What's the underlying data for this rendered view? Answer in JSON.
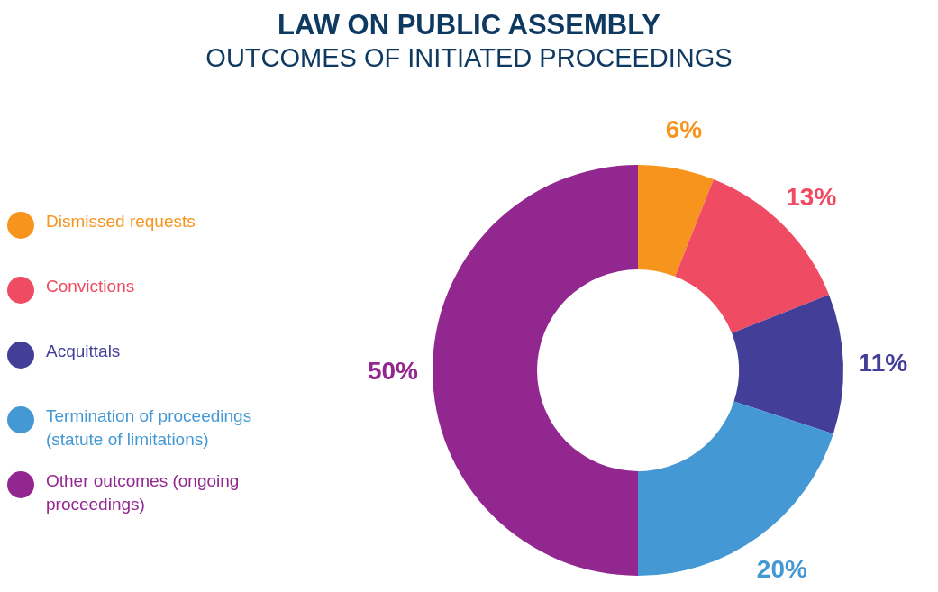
{
  "chart_data": {
    "type": "donut",
    "title": "LAW ON PUBLIC ASSEMBLY",
    "subtitle": "OUTCOMES OF INITIATED PROCEEDINGS",
    "categories": [
      "Dismissed requests",
      "Convictions",
      "Acquittals",
      "Termination of proceedings (statute of limitations)",
      "Other outcomes (ongoing proceedings)"
    ],
    "values": [
      6,
      13,
      11,
      20,
      50
    ],
    "colors": [
      "#f7941d",
      "#ef4b62",
      "#433e98",
      "#4499d4",
      "#92278f"
    ],
    "value_labels": [
      "6%",
      "13%",
      "11%",
      "20%",
      "50%"
    ],
    "legend": "left"
  }
}
